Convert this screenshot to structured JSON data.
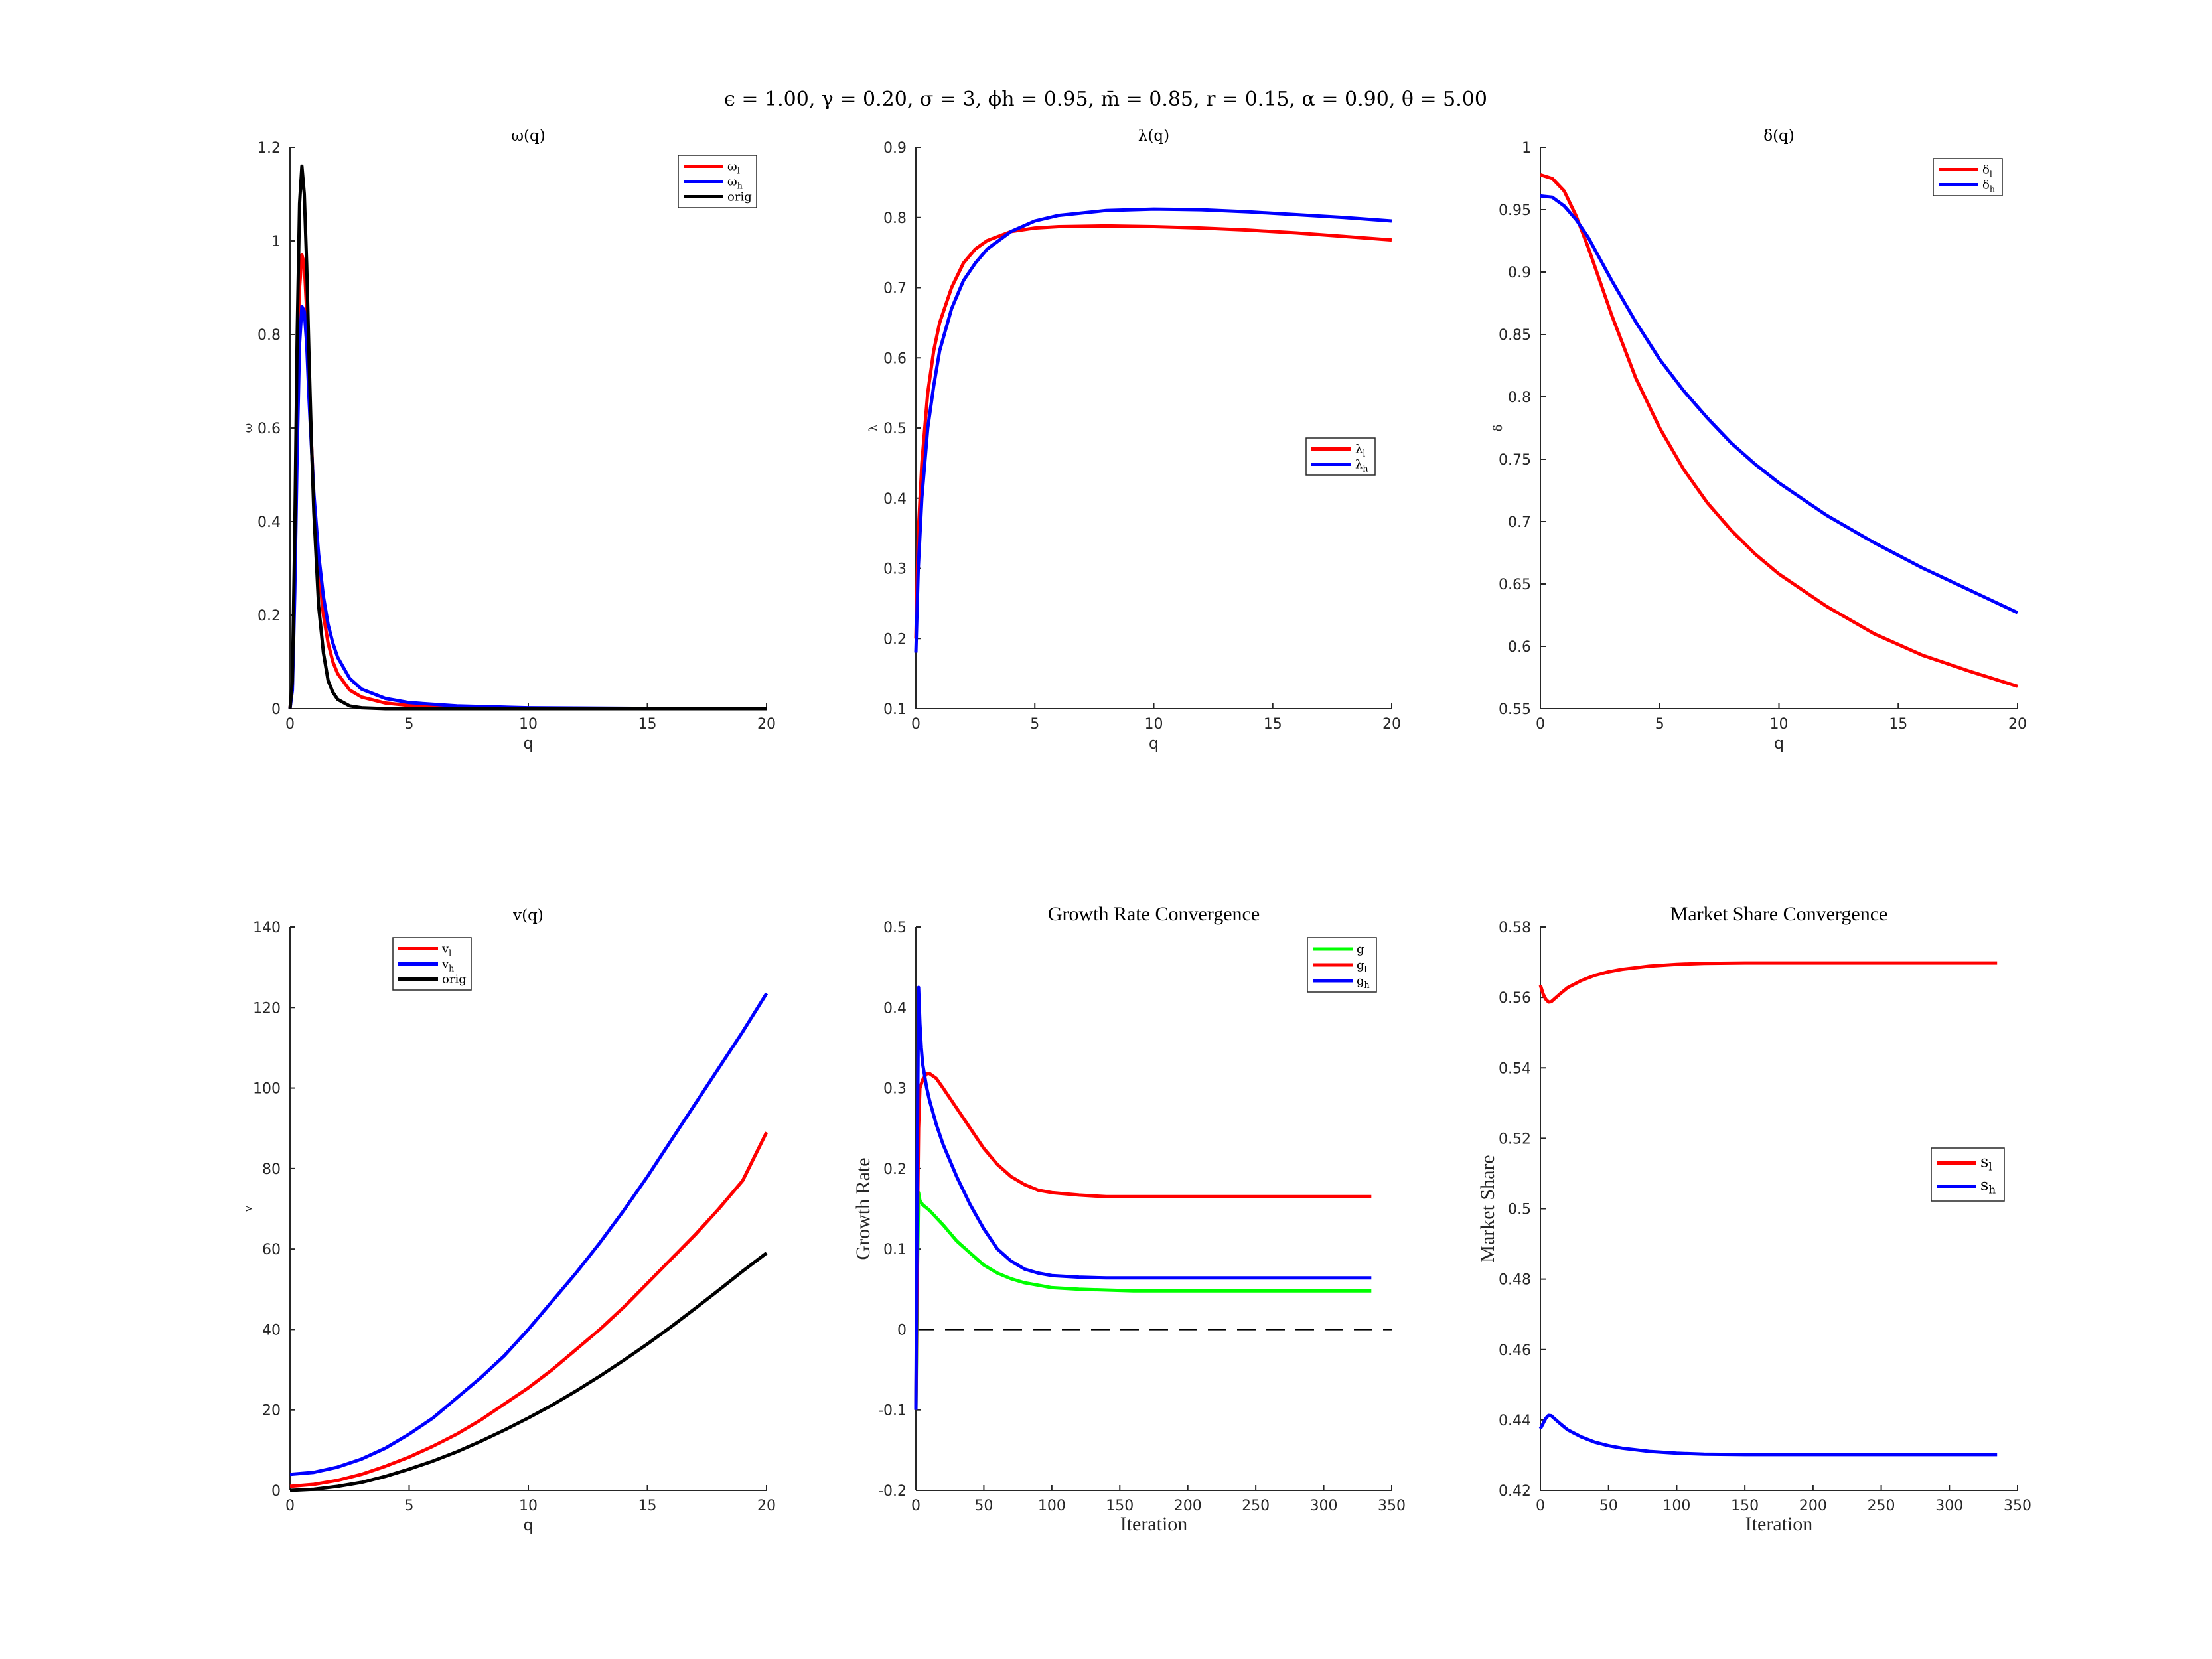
{
  "figure": {
    "suptitle": "ϵ = 1.00, γ = 0.20, σ = 3, ϕh = 0.95, m̄ = 0.85, r = 0.15, α = 0.90, θ = 5.00"
  },
  "chart_data": [
    {
      "id": "omega",
      "type": "line",
      "title": "ω(q)",
      "xlabel": "q",
      "ylabel": "ω",
      "xlim": [
        0,
        20
      ],
      "ylim": [
        0,
        1.2
      ],
      "xticks": [
        0,
        5,
        10,
        15,
        20
      ],
      "yticks": [
        0,
        0.2,
        0.4,
        0.6,
        0.8,
        1,
        1.2
      ],
      "legend_position": "top-right",
      "series": [
        {
          "name": "ωl",
          "color": "#ff0000",
          "x": [
            0,
            0.1,
            0.2,
            0.3,
            0.4,
            0.5,
            0.6,
            0.7,
            0.8,
            0.9,
            1.0,
            1.2,
            1.4,
            1.6,
            1.8,
            2.0,
            2.5,
            3,
            4,
            5,
            7,
            10,
            15,
            20
          ],
          "y": [
            0,
            0.05,
            0.3,
            0.65,
            0.9,
            0.97,
            0.95,
            0.85,
            0.7,
            0.57,
            0.45,
            0.3,
            0.2,
            0.14,
            0.1,
            0.075,
            0.04,
            0.025,
            0.012,
            0.007,
            0.003,
            0.001,
            0.0003,
            0
          ]
        },
        {
          "name": "ωh",
          "color": "#0000ff",
          "x": [
            0,
            0.1,
            0.2,
            0.3,
            0.4,
            0.5,
            0.6,
            0.7,
            0.8,
            0.9,
            1.0,
            1.2,
            1.4,
            1.6,
            1.8,
            2.0,
            2.5,
            3,
            4,
            5,
            7,
            10,
            15,
            20
          ],
          "y": [
            0,
            0.04,
            0.25,
            0.55,
            0.78,
            0.86,
            0.85,
            0.78,
            0.66,
            0.56,
            0.46,
            0.33,
            0.24,
            0.18,
            0.14,
            0.11,
            0.065,
            0.042,
            0.022,
            0.013,
            0.006,
            0.002,
            0.0005,
            0
          ]
        },
        {
          "name": "orig",
          "color": "#000000",
          "x": [
            0,
            0.1,
            0.2,
            0.3,
            0.4,
            0.5,
            0.6,
            0.7,
            0.8,
            0.9,
            1.0,
            1.2,
            1.4,
            1.6,
            1.8,
            2.0,
            2.5,
            3,
            4,
            5,
            7,
            10,
            15,
            20
          ],
          "y": [
            0,
            0.06,
            0.38,
            0.8,
            1.08,
            1.16,
            1.1,
            0.95,
            0.75,
            0.57,
            0.42,
            0.22,
            0.12,
            0.06,
            0.035,
            0.02,
            0.006,
            0.002,
            0,
            0,
            0,
            0,
            0,
            0
          ]
        }
      ]
    },
    {
      "id": "lambda",
      "type": "line",
      "title": "λ(q)",
      "xlabel": "q",
      "ylabel": "λ",
      "xlim": [
        0,
        20
      ],
      "ylim": [
        0.1,
        0.9
      ],
      "xticks": [
        0,
        5,
        10,
        15,
        20
      ],
      "yticks": [
        0.1,
        0.2,
        0.3,
        0.4,
        0.5,
        0.6,
        0.7,
        0.8,
        0.9
      ],
      "legend_position": "middle-right",
      "series": [
        {
          "name": "λl",
          "color": "#ff0000",
          "x": [
            0,
            0.1,
            0.25,
            0.5,
            0.75,
            1,
            1.5,
            2,
            2.5,
            3,
            4,
            5,
            6,
            8,
            10,
            12,
            14,
            16,
            18,
            20
          ],
          "y": [
            0.2,
            0.35,
            0.45,
            0.55,
            0.61,
            0.65,
            0.7,
            0.735,
            0.755,
            0.767,
            0.78,
            0.785,
            0.787,
            0.788,
            0.787,
            0.785,
            0.782,
            0.778,
            0.773,
            0.768
          ]
        },
        {
          "name": "λh",
          "color": "#0000ff",
          "x": [
            0,
            0.1,
            0.25,
            0.5,
            0.75,
            1,
            1.5,
            2,
            2.5,
            3,
            4,
            5,
            6,
            8,
            10,
            12,
            14,
            16,
            18,
            20
          ],
          "y": [
            0.18,
            0.3,
            0.4,
            0.5,
            0.56,
            0.61,
            0.67,
            0.71,
            0.735,
            0.755,
            0.78,
            0.795,
            0.803,
            0.81,
            0.812,
            0.811,
            0.808,
            0.804,
            0.8,
            0.795
          ]
        }
      ]
    },
    {
      "id": "delta",
      "type": "line",
      "title": "δ(q)",
      "xlabel": "q",
      "ylabel": "δ",
      "xlim": [
        0,
        20
      ],
      "ylim": [
        0.55,
        1
      ],
      "xticks": [
        0,
        5,
        10,
        15,
        20
      ],
      "yticks": [
        0.55,
        0.6,
        0.65,
        0.7,
        0.75,
        0.8,
        0.85,
        0.9,
        0.95,
        1
      ],
      "legend_position": "top-right",
      "series": [
        {
          "name": "δl",
          "color": "#ff0000",
          "x": [
            0,
            0.5,
            1,
            1.5,
            2,
            3,
            4,
            5,
            6,
            7,
            8,
            9,
            10,
            12,
            14,
            16,
            18,
            20
          ],
          "y": [
            0.978,
            0.975,
            0.965,
            0.945,
            0.92,
            0.865,
            0.815,
            0.775,
            0.742,
            0.715,
            0.693,
            0.674,
            0.658,
            0.632,
            0.61,
            0.593,
            0.58,
            0.568
          ]
        },
        {
          "name": "δh",
          "color": "#0000ff",
          "x": [
            0,
            0.5,
            1,
            1.5,
            2,
            3,
            4,
            5,
            6,
            7,
            8,
            9,
            10,
            12,
            14,
            16,
            18,
            20
          ],
          "y": [
            0.961,
            0.96,
            0.953,
            0.942,
            0.928,
            0.893,
            0.86,
            0.83,
            0.805,
            0.783,
            0.763,
            0.746,
            0.731,
            0.705,
            0.683,
            0.663,
            0.645,
            0.627
          ]
        }
      ]
    },
    {
      "id": "value",
      "type": "line",
      "title": "v(q)",
      "xlabel": "q",
      "ylabel": "v",
      "xlim": [
        0,
        20
      ],
      "ylim": [
        0,
        140
      ],
      "xticks": [
        0,
        5,
        10,
        15,
        20
      ],
      "yticks": [
        0,
        20,
        40,
        60,
        80,
        100,
        120,
        140
      ],
      "legend_position": "top-left",
      "series": [
        {
          "name": "vl",
          "color": "#ff0000",
          "x": [
            0,
            1,
            2,
            3,
            4,
            5,
            6,
            7,
            8,
            9,
            10,
            11,
            12,
            13,
            14,
            15,
            16,
            17,
            18,
            19,
            20
          ],
          "y": [
            1,
            1.5,
            2.5,
            4,
            6,
            8.3,
            11,
            14,
            17.5,
            21.5,
            25.5,
            30,
            35,
            40,
            45.5,
            51.5,
            57.5,
            63.5,
            70,
            77,
            89
          ]
        },
        {
          "name": "vh",
          "color": "#0000ff",
          "x": [
            0,
            1,
            2,
            3,
            4,
            5,
            6,
            7,
            8,
            9,
            10,
            11,
            12,
            13,
            14,
            15,
            16,
            17,
            18,
            19,
            20
          ],
          "y": [
            4,
            4.5,
            5.8,
            7.8,
            10.5,
            14,
            18,
            23,
            28,
            33.5,
            40,
            47,
            54,
            61.5,
            69.5,
            78,
            87,
            96,
            105,
            114,
            123.5
          ]
        },
        {
          "name": "orig",
          "color": "#000000",
          "x": [
            0,
            1,
            2,
            3,
            4,
            5,
            6,
            7,
            8,
            9,
            10,
            11,
            12,
            13,
            14,
            15,
            16,
            17,
            18,
            19,
            20
          ],
          "y": [
            0,
            0.3,
            1,
            2,
            3.5,
            5.3,
            7.3,
            9.6,
            12.2,
            15,
            18,
            21.2,
            24.7,
            28.4,
            32.3,
            36.4,
            40.7,
            45.2,
            49.8,
            54.5,
            59
          ]
        }
      ]
    },
    {
      "id": "growth",
      "type": "line",
      "title": "Growth Rate Convergence",
      "xlabel": "Iteration",
      "ylabel": "Growth Rate",
      "xlim": [
        0,
        350
      ],
      "ylim": [
        -0.2,
        0.5
      ],
      "xticks": [
        0,
        50,
        100,
        150,
        200,
        250,
        300,
        350
      ],
      "yticks": [
        -0.2,
        -0.1,
        0,
        0.1,
        0.2,
        0.3,
        0.4,
        0.5
      ],
      "legend_position": "top-right",
      "reference_line": {
        "y": 0,
        "style": "dashed",
        "color": "#000000"
      },
      "series": [
        {
          "name": "g",
          "color": "#00ff00",
          "x": [
            0,
            1,
            2,
            3,
            5,
            10,
            20,
            30,
            40,
            50,
            60,
            70,
            80,
            90,
            100,
            120,
            140,
            160,
            200,
            250,
            300,
            335
          ],
          "y": [
            -0.1,
            0.05,
            0.17,
            0.16,
            0.155,
            0.148,
            0.13,
            0.11,
            0.095,
            0.08,
            0.07,
            0.063,
            0.058,
            0.055,
            0.052,
            0.05,
            0.049,
            0.048,
            0.048,
            0.048,
            0.048,
            0.048
          ]
        },
        {
          "name": "gl",
          "color": "#ff0000",
          "x": [
            0,
            1,
            2,
            3,
            5,
            8,
            10,
            15,
            20,
            30,
            40,
            50,
            60,
            70,
            80,
            90,
            100,
            120,
            140,
            160,
            200,
            250,
            300,
            335
          ],
          "y": [
            -0.1,
            0.1,
            0.25,
            0.3,
            0.31,
            0.318,
            0.318,
            0.312,
            0.3,
            0.275,
            0.25,
            0.225,
            0.205,
            0.19,
            0.18,
            0.173,
            0.17,
            0.167,
            0.165,
            0.165,
            0.165,
            0.165,
            0.165,
            0.165
          ]
        },
        {
          "name": "gh",
          "color": "#0000ff",
          "x": [
            0,
            1,
            2,
            3,
            4,
            5,
            8,
            10,
            15,
            20,
            30,
            40,
            50,
            60,
            70,
            80,
            90,
            100,
            120,
            140,
            160,
            200,
            250,
            300,
            335
          ],
          "y": [
            -0.1,
            0.2,
            0.425,
            0.38,
            0.35,
            0.33,
            0.3,
            0.285,
            0.255,
            0.23,
            0.19,
            0.155,
            0.125,
            0.1,
            0.085,
            0.075,
            0.07,
            0.067,
            0.065,
            0.064,
            0.064,
            0.064,
            0.064,
            0.064,
            0.064
          ]
        }
      ]
    },
    {
      "id": "share",
      "type": "line",
      "title": "Market Share Convergence",
      "xlabel": "Iteration",
      "ylabel": "Market Share",
      "xlim": [
        0,
        350
      ],
      "ylim": [
        0.42,
        0.58
      ],
      "xticks": [
        0,
        50,
        100,
        150,
        200,
        250,
        300,
        350
      ],
      "yticks": [
        0.42,
        0.44,
        0.46,
        0.48,
        0.5,
        0.52,
        0.54,
        0.56,
        0.58
      ],
      "legend_position": "middle-right",
      "series": [
        {
          "name": "sl",
          "color": "#ff0000",
          "x": [
            0,
            2,
            4,
            6,
            8,
            10,
            15,
            20,
            30,
            40,
            50,
            60,
            80,
            100,
            120,
            150,
            200,
            250,
            300,
            335
          ],
          "y": [
            0.5635,
            0.561,
            0.5595,
            0.5587,
            0.5588,
            0.5595,
            0.5612,
            0.5628,
            0.5648,
            0.5663,
            0.5673,
            0.568,
            0.5689,
            0.5694,
            0.5697,
            0.5698,
            0.5698,
            0.5698,
            0.5698,
            0.5698
          ]
        },
        {
          "name": "sh",
          "color": "#0000ff",
          "x": [
            0,
            2,
            4,
            6,
            8,
            10,
            15,
            20,
            30,
            40,
            50,
            60,
            80,
            100,
            120,
            150,
            200,
            250,
            300,
            335
          ],
          "y": [
            0.4375,
            0.439,
            0.4405,
            0.4413,
            0.4412,
            0.4405,
            0.4388,
            0.4372,
            0.4352,
            0.4337,
            0.4327,
            0.432,
            0.4311,
            0.4306,
            0.4303,
            0.4302,
            0.4302,
            0.4302,
            0.4302,
            0.4302
          ]
        }
      ]
    }
  ]
}
